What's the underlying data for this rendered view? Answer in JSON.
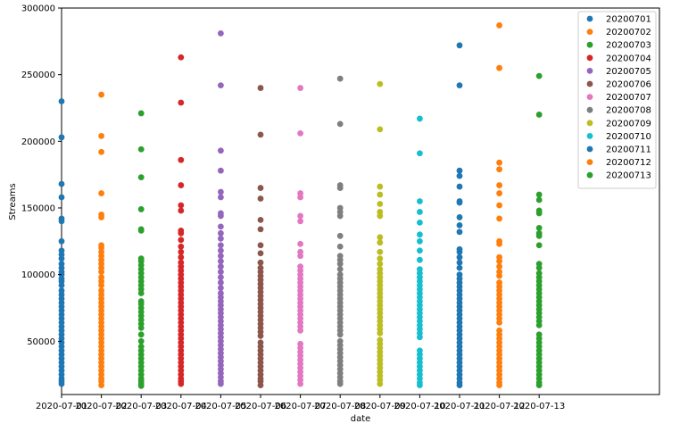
{
  "chart_data": {
    "type": "scatter",
    "title": "",
    "xlabel": "date",
    "ylabel": "Streams",
    "xlim": [
      "2020-07-01",
      "2020-07-16.3"
    ],
    "ylim": [
      10000,
      300000
    ],
    "grid": false,
    "legend_position": "top-right",
    "x_ticks": [
      "2020-07-01",
      "2020-07-02",
      "2020-07-03",
      "2020-07-04",
      "2020-07-05",
      "2020-07-06",
      "2020-07-07",
      "2020-07-08",
      "2020-07-09",
      "2020-07-10",
      "2020-07-11",
      "2020-07-12",
      "2020-07-13"
    ],
    "y_ticks": [
      50000,
      100000,
      150000,
      200000,
      250000,
      300000
    ],
    "series": [
      {
        "name": "20200701",
        "x": "2020-07-01",
        "color": "#1f77b4",
        "values": [
          230000,
          203000,
          168000,
          158000,
          142000,
          140000,
          125000,
          118000,
          115000,
          112000,
          108000,
          105000,
          102000,
          100000,
          97000,
          95000,
          92000,
          88000,
          85000,
          82000,
          79000,
          76000,
          73000,
          70000,
          67000,
          64000,
          61000,
          58000,
          55000,
          52000,
          49000,
          46000,
          43000,
          40000,
          37000,
          34000,
          31000,
          28000,
          25000,
          22000,
          20000,
          18000
        ]
      },
      {
        "name": "20200702",
        "x": "2020-07-02",
        "color": "#ff7f0e",
        "values": [
          235000,
          204000,
          192000,
          161000,
          145000,
          143000,
          122000,
          120000,
          117000,
          114000,
          111000,
          108000,
          105000,
          102000,
          98000,
          95000,
          92000,
          88000,
          85000,
          82000,
          79000,
          76000,
          73000,
          70000,
          67000,
          64000,
          61000,
          58000,
          55000,
          52000,
          49000,
          46000,
          43000,
          40000,
          37000,
          34000,
          31000,
          28000,
          25000,
          22000,
          20000,
          17000
        ]
      },
      {
        "name": "20200703",
        "x": "2020-07-03",
        "color": "#2ca02c",
        "values": [
          221000,
          194000,
          173000,
          149000,
          134000,
          133000,
          112000,
          110000,
          107000,
          104000,
          101000,
          98000,
          95000,
          92000,
          89000,
          86000,
          80000,
          78000,
          75000,
          72000,
          69000,
          66000,
          63000,
          60000,
          55000,
          50000,
          46000,
          43000,
          40000,
          37000,
          34000,
          31000,
          28000,
          25000,
          22000,
          20000,
          18000,
          16500
        ]
      },
      {
        "name": "20200704",
        "x": "2020-07-04",
        "color": "#d62728",
        "values": [
          263000,
          229000,
          186000,
          167000,
          152000,
          148000,
          133000,
          131000,
          126000,
          121000,
          117000,
          113000,
          109000,
          106000,
          103000,
          100000,
          97000,
          94000,
          91000,
          88000,
          85000,
          82000,
          79000,
          76000,
          73000,
          70000,
          67000,
          64000,
          61000,
          58000,
          55000,
          52000,
          49000,
          46000,
          43000,
          40000,
          37000,
          34000,
          31000,
          28000,
          25000,
          22000,
          20000,
          18000
        ]
      },
      {
        "name": "20200705",
        "x": "2020-07-05",
        "color": "#9467bd",
        "values": [
          281000,
          242000,
          193000,
          178000,
          162000,
          158000,
          146000,
          144000,
          136000,
          131000,
          127000,
          122000,
          118000,
          114000,
          110000,
          106000,
          102000,
          98000,
          94000,
          90000,
          86000,
          83000,
          80000,
          77000,
          74000,
          71000,
          68000,
          65000,
          62000,
          59000,
          56000,
          53000,
          50000,
          47000,
          44000,
          41000,
          38000,
          35000,
          32000,
          29000,
          26000,
          23000,
          20000,
          18000
        ]
      },
      {
        "name": "20200706",
        "x": "2020-07-06",
        "color": "#8c564b",
        "values": [
          240000,
          205000,
          165000,
          157000,
          141000,
          134000,
          122000,
          116000,
          109000,
          105000,
          102000,
          99000,
          96000,
          93000,
          90000,
          87000,
          84000,
          81000,
          78000,
          75000,
          72000,
          69000,
          66000,
          63000,
          60000,
          57000,
          54000,
          49000,
          46000,
          43000,
          40000,
          37000,
          34000,
          31000,
          28000,
          25000,
          22000,
          20000,
          17000
        ]
      },
      {
        "name": "20200707",
        "x": "2020-07-07",
        "color": "#e377c2",
        "values": [
          240000,
          206000,
          161000,
          158000,
          144000,
          140000,
          123000,
          117000,
          114000,
          106000,
          103000,
          100000,
          97000,
          94000,
          91000,
          88000,
          85000,
          82000,
          79000,
          76000,
          73000,
          70000,
          67000,
          64000,
          61000,
          58000,
          48000,
          45000,
          42000,
          39000,
          36000,
          33000,
          30000,
          27000,
          24000,
          21000,
          18000
        ]
      },
      {
        "name": "20200708",
        "x": "2020-07-08",
        "color": "#7f7f7f",
        "values": [
          247000,
          213000,
          167000,
          165000,
          150000,
          147000,
          144000,
          129000,
          121000,
          114000,
          111000,
          108000,
          104000,
          100000,
          97000,
          94000,
          91000,
          88000,
          85000,
          82000,
          79000,
          76000,
          73000,
          70000,
          67000,
          64000,
          61000,
          58000,
          55000,
          50000,
          47000,
          44000,
          41000,
          38000,
          35000,
          32000,
          29000,
          26000,
          23000,
          20000,
          18000
        ]
      },
      {
        "name": "20200709",
        "x": "2020-07-09",
        "color": "#bcbd22",
        "values": [
          243000,
          209000,
          166000,
          160000,
          153000,
          147000,
          144000,
          128000,
          124000,
          117000,
          112000,
          108000,
          104000,
          101000,
          98000,
          95000,
          92000,
          89000,
          86000,
          83000,
          80000,
          77000,
          74000,
          71000,
          68000,
          65000,
          62000,
          59000,
          56000,
          51000,
          48000,
          45000,
          42000,
          39000,
          36000,
          33000,
          30000,
          27000,
          24000,
          21000,
          18000
        ]
      },
      {
        "name": "20200710",
        "x": "2020-07-10",
        "color": "#17becf",
        "values": [
          217000,
          191000,
          155000,
          147000,
          139000,
          130000,
          125000,
          118000,
          111000,
          104000,
          101000,
          98000,
          95000,
          92000,
          89000,
          86000,
          83000,
          80000,
          77000,
          74000,
          71000,
          68000,
          65000,
          62000,
          59000,
          56000,
          53000,
          43000,
          40000,
          37000,
          34000,
          31000,
          28000,
          25000,
          22000,
          19000,
          17000
        ]
      },
      {
        "name": "20200711",
        "x": "2020-07-11",
        "color": "#1f77b4",
        "values": [
          272000,
          242000,
          178000,
          174000,
          166000,
          155000,
          154000,
          143000,
          137000,
          132000,
          119000,
          117000,
          113000,
          109000,
          105000,
          100000,
          97000,
          94000,
          91000,
          88000,
          85000,
          82000,
          79000,
          76000,
          73000,
          70000,
          67000,
          64000,
          61000,
          58000,
          55000,
          52000,
          49000,
          46000,
          43000,
          40000,
          37000,
          34000,
          31000,
          28000,
          25000,
          22000,
          19000,
          17000
        ]
      },
      {
        "name": "20200712",
        "x": "2020-07-12",
        "color": "#ff7f0e",
        "values": [
          287000,
          255000,
          184000,
          179000,
          167000,
          161000,
          152000,
          142000,
          125000,
          123000,
          113000,
          110000,
          106000,
          102000,
          99000,
          94000,
          91000,
          88000,
          85000,
          82000,
          79000,
          76000,
          73000,
          70000,
          67000,
          64000,
          58000,
          55000,
          52000,
          49000,
          46000,
          43000,
          40000,
          37000,
          34000,
          31000,
          28000,
          25000,
          22000,
          19000,
          17000
        ]
      },
      {
        "name": "20200713",
        "x": "2020-07-13",
        "color": "#2ca02c",
        "values": [
          249000,
          220000,
          160000,
          156000,
          148000,
          146000,
          135000,
          131000,
          129000,
          122000,
          108000,
          105000,
          101000,
          98000,
          95000,
          92000,
          89000,
          86000,
          83000,
          80000,
          77000,
          74000,
          71000,
          68000,
          65000,
          62000,
          55000,
          52000,
          49000,
          46000,
          43000,
          40000,
          37000,
          34000,
          31000,
          28000,
          25000,
          22000,
          19000,
          17000
        ]
      }
    ]
  }
}
